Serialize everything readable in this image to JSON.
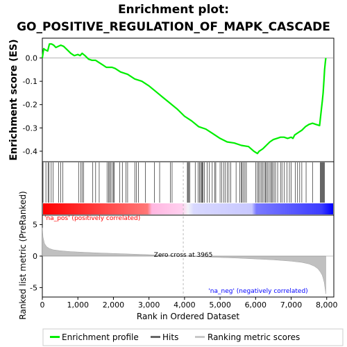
{
  "chart_data": {
    "type": "line",
    "title_line1": "Enrichment plot:",
    "title_line2": "GO_POSITIVE_REGULATION_OF_MAPK_CASCADE",
    "xlabel": "Rank in Ordered Dataset",
    "es_ylabel": "Enrichment score (ES)",
    "metric_ylabel": "Ranked list metric (PreRanked)",
    "xlim": [
      0,
      8200
    ],
    "x_ticks": [
      0,
      1000,
      2000,
      3000,
      4000,
      5000,
      6000,
      7000,
      8000
    ],
    "x_tick_labels": [
      "0",
      "1,000",
      "2,000",
      "3,000",
      "4,000",
      "5,000",
      "6,000",
      "7,000",
      "8,000"
    ],
    "es_ylim": [
      -0.445,
      0.085
    ],
    "es_y_ticks": [
      0.0,
      -0.1,
      -0.2,
      -0.3,
      -0.4
    ],
    "es_y_tick_labels": [
      "0.0",
      "-0.1",
      "-0.2",
      "-0.3",
      "-0.4"
    ],
    "metric_ylim": [
      -6.5,
      6.5
    ],
    "metric_y_ticks": [
      5,
      0,
      -5
    ],
    "metric_y_tick_labels": [
      "5",
      "0",
      "-5"
    ],
    "zero_cross_rank": 3965,
    "zero_cross_label": "Zero cross at 3965",
    "pos_label": "'na_pos' (positively correlated)",
    "neg_label": "'na_neg' (negatively correlated)",
    "enrichment_profile": {
      "x": [
        0,
        40,
        80,
        150,
        200,
        260,
        320,
        380,
        450,
        520,
        600,
        700,
        800,
        900,
        1000,
        1060,
        1120,
        1200,
        1300,
        1400,
        1500,
        1600,
        1700,
        1800,
        1880,
        1960,
        2050,
        2200,
        2400,
        2600,
        2800,
        3000,
        3200,
        3400,
        3600,
        3800,
        4000,
        4200,
        4400,
        4600,
        4800,
        5000,
        5200,
        5400,
        5600,
        5800,
        5950,
        6050,
        6100,
        6200,
        6300,
        6400,
        6500,
        6600,
        6700,
        6800,
        6900,
        7000,
        7050,
        7100,
        7200,
        7300,
        7400,
        7500,
        7600,
        7700,
        7800,
        7850,
        7880,
        7900,
        7920,
        7940,
        7960,
        7975
      ],
      "y": [
        0.0,
        0.04,
        0.035,
        0.03,
        0.06,
        0.06,
        0.055,
        0.045,
        0.05,
        0.055,
        0.05,
        0.035,
        0.02,
        0.01,
        0.015,
        0.01,
        0.02,
        0.01,
        -0.005,
        -0.01,
        -0.01,
        -0.02,
        -0.03,
        -0.04,
        -0.04,
        -0.04,
        -0.045,
        -0.06,
        -0.07,
        -0.09,
        -0.1,
        -0.12,
        -0.145,
        -0.17,
        -0.195,
        -0.22,
        -0.25,
        -0.27,
        -0.295,
        -0.305,
        -0.325,
        -0.345,
        -0.36,
        -0.365,
        -0.375,
        -0.38,
        -0.4,
        -0.41,
        -0.4,
        -0.39,
        -0.375,
        -0.36,
        -0.35,
        -0.345,
        -0.34,
        -0.34,
        -0.345,
        -0.34,
        -0.345,
        -0.33,
        -0.32,
        -0.31,
        -0.295,
        -0.285,
        -0.28,
        -0.285,
        -0.29,
        -0.22,
        -0.18,
        -0.15,
        -0.1,
        -0.05,
        -0.02,
        0.0
      ]
    },
    "metric_profile": {
      "x": [
        0,
        20,
        60,
        120,
        200,
        300,
        500,
        800,
        1200,
        1600,
        2000,
        2500,
        3000,
        3500,
        3965,
        4500,
        5000,
        5500,
        6000,
        6500,
        7000,
        7300,
        7500,
        7650,
        7750,
        7820,
        7870,
        7900,
        7930,
        7950,
        7965,
        7975
      ],
      "y": [
        4.5,
        3.0,
        2.0,
        1.5,
        1.2,
        1.0,
        0.85,
        0.7,
        0.6,
        0.5,
        0.42,
        0.32,
        0.22,
        0.1,
        0.0,
        -0.12,
        -0.22,
        -0.32,
        -0.45,
        -0.6,
        -0.8,
        -1.0,
        -1.25,
        -1.6,
        -2.0,
        -2.5,
        -3.0,
        -3.5,
        -4.2,
        -5.0,
        -5.6,
        -6.0
      ]
    },
    "hits": [
      20,
      100,
      160,
      190,
      250,
      300,
      460,
      520,
      580,
      1020,
      1080,
      1120,
      1160,
      1420,
      1500,
      1600,
      1820,
      1860,
      1890,
      1920,
      1960,
      2000,
      2020,
      2180,
      2250,
      2350,
      2400,
      2600,
      2650,
      2700,
      2900,
      3150,
      3300,
      3600,
      3650,
      4080,
      4100,
      4120,
      4150,
      4300,
      4380,
      4420,
      4450,
      4480,
      4500,
      4520,
      4560,
      4640,
      4700,
      4780,
      4850,
      4880,
      5000,
      5050,
      5100,
      5150,
      5200,
      5250,
      5300,
      5450,
      5550,
      5600,
      5620,
      5660,
      5700,
      5740,
      6000,
      6050,
      6080,
      6120,
      6160,
      6200,
      6240,
      6280,
      6300,
      6340,
      6380,
      6420,
      6450,
      6480,
      6520,
      6560,
      6620,
      6700,
      6740,
      6800,
      6880,
      6950,
      7000,
      7120,
      7180,
      7240,
      7300,
      7420,
      7600,
      7820,
      7840,
      7860,
      7880,
      7900,
      7920,
      7940
    ],
    "legend": [
      {
        "label": "Enrichment profile",
        "color": "#00ee00"
      },
      {
        "label": "Hits",
        "color": "#666666"
      },
      {
        "label": "Ranking metric scores",
        "color": "#c8c8c8"
      }
    ],
    "colors": {
      "profile": "#00ee00",
      "hits": "#000000",
      "metric_fill": "#c0c0c0",
      "pos_label": "#ff0000",
      "neg_label": "#0000ff",
      "zero_line": "#888888",
      "zero_dashed": "#bbbbbb"
    }
  }
}
